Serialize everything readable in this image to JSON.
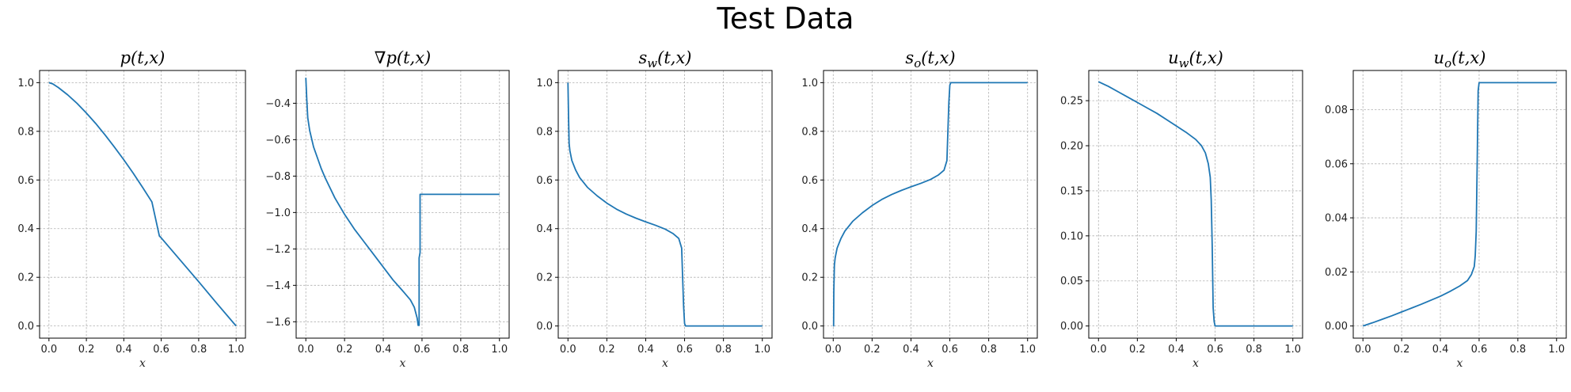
{
  "figure": {
    "suptitle": "Test Data"
  },
  "chart_data": [
    {
      "type": "line",
      "title": "p(t,x)",
      "xlabel": "x",
      "xlim": [
        -0.05,
        1.05
      ],
      "ylim": [
        -0.05,
        1.05
      ],
      "xticks": [
        0.0,
        0.2,
        0.4,
        0.6,
        0.8,
        1.0
      ],
      "yticks": [
        0.0,
        0.2,
        0.4,
        0.6,
        0.8,
        1.0
      ],
      "tick_labels_x": [
        "0.0",
        "0.2",
        "0.4",
        "0.6",
        "0.8",
        "1.0"
      ],
      "tick_labels_y": [
        "0.0",
        "0.2",
        "0.4",
        "0.6",
        "0.8",
        "1.0"
      ],
      "grid": true,
      "series": [
        {
          "color": "#1f77b4",
          "x": [
            0.0,
            0.02,
            0.05,
            0.1,
            0.15,
            0.2,
            0.25,
            0.3,
            0.35,
            0.4,
            0.45,
            0.5,
            0.55,
            0.59,
            0.6,
            0.7,
            0.8,
            0.9,
            1.0
          ],
          "y": [
            1.0,
            0.995,
            0.98,
            0.95,
            0.915,
            0.875,
            0.832,
            0.785,
            0.735,
            0.683,
            0.628,
            0.57,
            0.51,
            0.37,
            0.362,
            0.272,
            0.182,
            0.09,
            0.0
          ]
        }
      ]
    },
    {
      "type": "line",
      "title": "∇p(t,x)",
      "xlabel": "x",
      "xlim": [
        -0.05,
        1.05
      ],
      "ylim": [
        -1.69,
        -0.22
      ],
      "xticks": [
        0.0,
        0.2,
        0.4,
        0.6,
        0.8,
        1.0
      ],
      "yticks": [
        -1.6,
        -1.4,
        -1.2,
        -1.0,
        -0.8,
        -0.6,
        -0.4
      ],
      "tick_labels_x": [
        "0.0",
        "0.2",
        "0.4",
        "0.6",
        "0.8",
        "1.0"
      ],
      "tick_labels_y": [
        "−1.6",
        "−1.4",
        "−1.2",
        "−1.0",
        "−0.8",
        "−0.6",
        "−0.4"
      ],
      "grid": true,
      "series": [
        {
          "color": "#1f77b4",
          "x": [
            0.0,
            0.005,
            0.01,
            0.02,
            0.04,
            0.06,
            0.08,
            0.1,
            0.15,
            0.2,
            0.25,
            0.3,
            0.35,
            0.4,
            0.45,
            0.5,
            0.54,
            0.56,
            0.575,
            0.58,
            0.585,
            0.585,
            0.59,
            0.59,
            0.595,
            0.6,
            0.8,
            1.0
          ],
          "y": [
            -0.26,
            -0.38,
            -0.48,
            -0.55,
            -0.64,
            -0.7,
            -0.76,
            -0.81,
            -0.92,
            -1.01,
            -1.09,
            -1.16,
            -1.23,
            -1.3,
            -1.37,
            -1.43,
            -1.48,
            -1.52,
            -1.58,
            -1.62,
            -1.62,
            -1.25,
            -1.22,
            -0.9,
            -0.9,
            -0.9,
            -0.9,
            -0.9
          ]
        }
      ]
    },
    {
      "type": "line",
      "title": "s_w(t,x)",
      "xlabel": "x",
      "xlim": [
        -0.05,
        1.05
      ],
      "ylim": [
        -0.05,
        1.05
      ],
      "xticks": [
        0.0,
        0.2,
        0.4,
        0.6,
        0.8,
        1.0
      ],
      "yticks": [
        0.0,
        0.2,
        0.4,
        0.6,
        0.8,
        1.0
      ],
      "tick_labels_x": [
        "0.0",
        "0.2",
        "0.4",
        "0.6",
        "0.8",
        "1.0"
      ],
      "tick_labels_y": [
        "0.0",
        "0.2",
        "0.4",
        "0.6",
        "0.8",
        "1.0"
      ],
      "grid": true,
      "series": [
        {
          "color": "#1f77b4",
          "x": [
            0.0,
            0.003,
            0.006,
            0.01,
            0.02,
            0.04,
            0.06,
            0.1,
            0.15,
            0.2,
            0.25,
            0.3,
            0.35,
            0.4,
            0.45,
            0.5,
            0.54,
            0.57,
            0.585,
            0.59,
            0.595,
            0.6,
            0.605,
            0.8,
            1.0
          ],
          "y": [
            1.0,
            0.86,
            0.75,
            0.72,
            0.68,
            0.64,
            0.61,
            0.57,
            0.535,
            0.505,
            0.48,
            0.46,
            0.443,
            0.428,
            0.414,
            0.398,
            0.38,
            0.36,
            0.32,
            0.2,
            0.08,
            0.01,
            0.0,
            0.0,
            0.0
          ]
        }
      ]
    },
    {
      "type": "line",
      "title": "s_o(t,x)",
      "xlabel": "x",
      "xlim": [
        -0.05,
        1.05
      ],
      "ylim": [
        -0.05,
        1.05
      ],
      "xticks": [
        0.0,
        0.2,
        0.4,
        0.6,
        0.8,
        1.0
      ],
      "yticks": [
        0.0,
        0.2,
        0.4,
        0.6,
        0.8,
        1.0
      ],
      "tick_labels_x": [
        "0.0",
        "0.2",
        "0.4",
        "0.6",
        "0.8",
        "1.0"
      ],
      "tick_labels_y": [
        "0.0",
        "0.2",
        "0.4",
        "0.6",
        "0.8",
        "1.0"
      ],
      "grid": true,
      "series": [
        {
          "color": "#1f77b4",
          "x": [
            0.0,
            0.002,
            0.003,
            0.006,
            0.01,
            0.02,
            0.04,
            0.06,
            0.1,
            0.15,
            0.2,
            0.25,
            0.3,
            0.35,
            0.4,
            0.45,
            0.5,
            0.54,
            0.57,
            0.585,
            0.59,
            0.595,
            0.6,
            0.605,
            0.8,
            1.0
          ],
          "y": [
            0.0,
            0.0,
            0.14,
            0.25,
            0.28,
            0.32,
            0.36,
            0.39,
            0.43,
            0.465,
            0.495,
            0.52,
            0.54,
            0.557,
            0.572,
            0.586,
            0.602,
            0.62,
            0.64,
            0.68,
            0.8,
            0.92,
            0.99,
            1.0,
            1.0,
            1.0
          ]
        }
      ]
    },
    {
      "type": "line",
      "title": "u_w(t,x)",
      "xlabel": "x",
      "xlim": [
        -0.05,
        1.05
      ],
      "ylim": [
        -0.0135,
        0.2835
      ],
      "xticks": [
        0.0,
        0.2,
        0.4,
        0.6,
        0.8,
        1.0
      ],
      "yticks": [
        0.0,
        0.05,
        0.1,
        0.15,
        0.2,
        0.25
      ],
      "tick_labels_x": [
        "0.0",
        "0.2",
        "0.4",
        "0.6",
        "0.8",
        "1.0"
      ],
      "tick_labels_y": [
        "0.00",
        "0.05",
        "0.10",
        "0.15",
        "0.20",
        "0.25"
      ],
      "grid": true,
      "series": [
        {
          "color": "#1f77b4",
          "x": [
            0.0,
            0.05,
            0.1,
            0.15,
            0.2,
            0.25,
            0.3,
            0.35,
            0.4,
            0.45,
            0.5,
            0.53,
            0.55,
            0.565,
            0.575,
            0.58,
            0.585,
            0.59,
            0.595,
            0.6,
            0.8,
            1.0
          ],
          "y": [
            0.271,
            0.266,
            0.26,
            0.254,
            0.248,
            0.242,
            0.236,
            0.229,
            0.222,
            0.215,
            0.207,
            0.2,
            0.192,
            0.18,
            0.165,
            0.14,
            0.09,
            0.02,
            0.005,
            0.0,
            0.0,
            0.0
          ]
        }
      ]
    },
    {
      "type": "line",
      "title": "u_o(t,x)",
      "xlabel": "x",
      "xlim": [
        -0.05,
        1.05
      ],
      "ylim": [
        -0.0045,
        0.0945
      ],
      "xticks": [
        0.0,
        0.2,
        0.4,
        0.6,
        0.8,
        1.0
      ],
      "yticks": [
        0.0,
        0.02,
        0.04,
        0.06,
        0.08
      ],
      "tick_labels_x": [
        "0.0",
        "0.2",
        "0.4",
        "0.6",
        "0.8",
        "1.0"
      ],
      "tick_labels_y": [
        "0.00",
        "0.02",
        "0.04",
        "0.06",
        "0.08"
      ],
      "grid": true,
      "series": [
        {
          "color": "#1f77b4",
          "x": [
            0.0,
            0.05,
            0.1,
            0.15,
            0.2,
            0.25,
            0.3,
            0.35,
            0.4,
            0.45,
            0.5,
            0.54,
            0.56,
            0.575,
            0.58,
            0.585,
            0.59,
            0.595,
            0.6,
            0.8,
            1.0
          ],
          "y": [
            0.0,
            0.0012,
            0.0025,
            0.0038,
            0.0052,
            0.0066,
            0.008,
            0.0095,
            0.011,
            0.0128,
            0.0148,
            0.0168,
            0.019,
            0.022,
            0.026,
            0.035,
            0.06,
            0.087,
            0.09,
            0.09,
            0.09
          ]
        }
      ]
    }
  ]
}
